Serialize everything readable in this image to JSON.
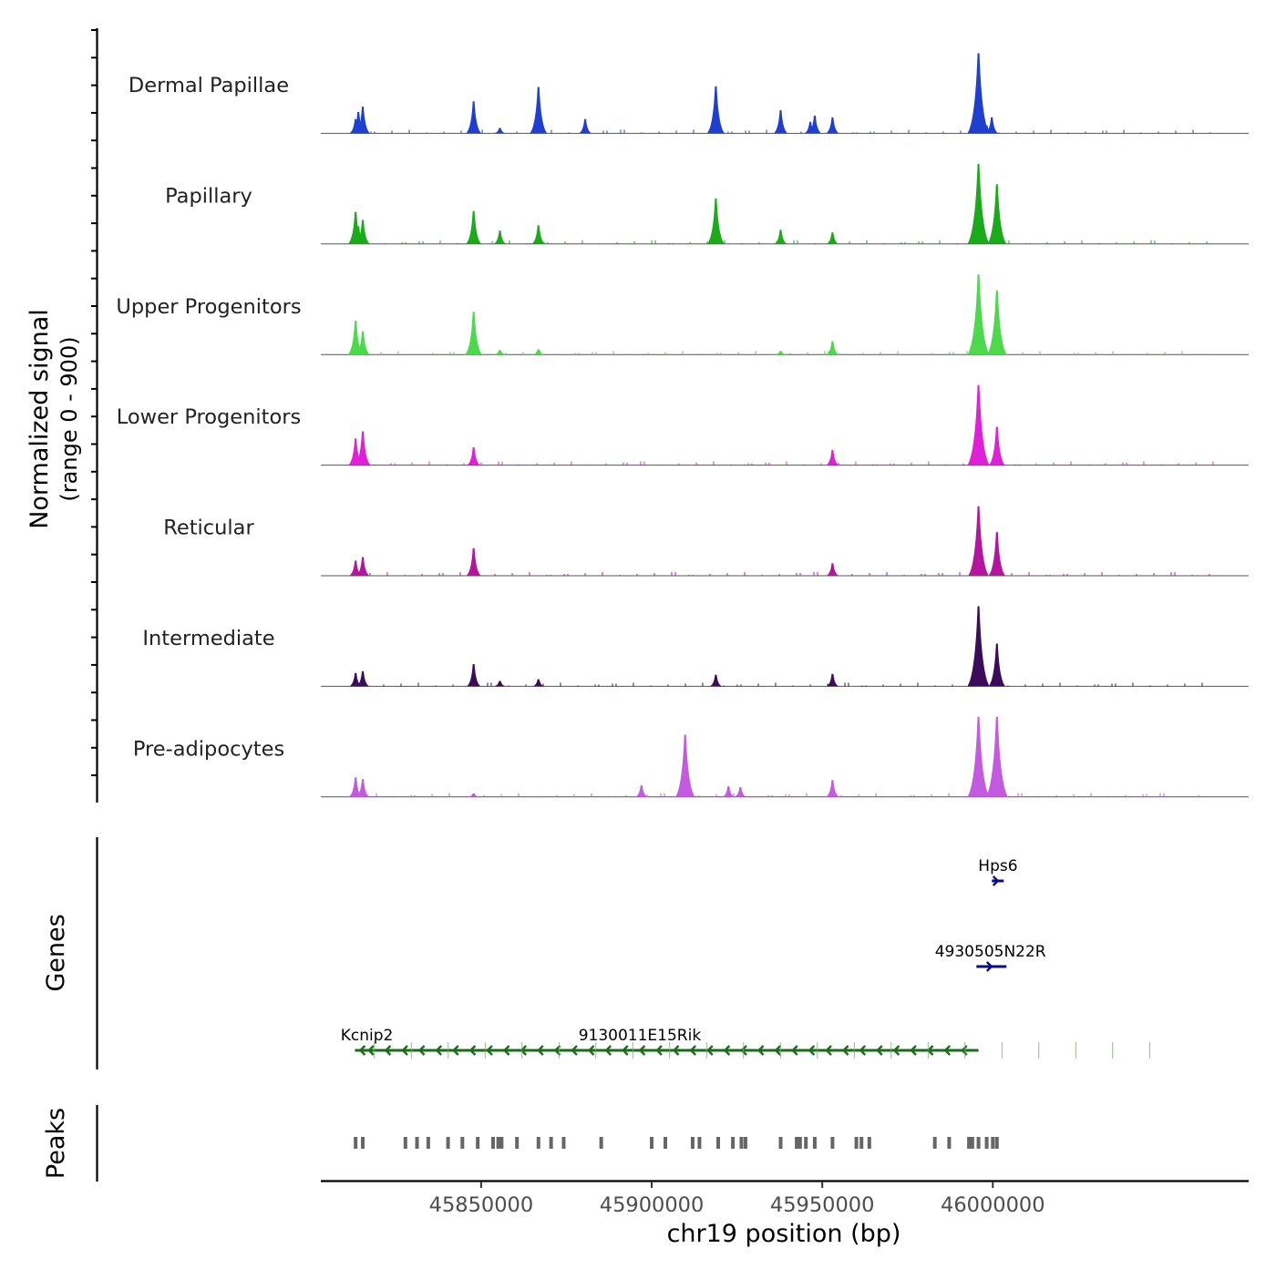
{
  "chart_data": {
    "type": "area",
    "title": "",
    "xlabel": "chr19 position (bp)",
    "ylabel": "Normalized signal",
    "ylabel_range": "(range 0 - 900)",
    "genes_label": "Genes",
    "peaks_label": "Peaks",
    "xlim": [
      45803000,
      46075000
    ],
    "ylim": [
      0,
      900
    ],
    "x_ticks": [
      45850000,
      45900000,
      45950000,
      46000000
    ],
    "x_tick_labels": [
      "45850000",
      "45900000",
      "45950000",
      "46000000"
    ],
    "tracks": [
      {
        "name": "Dermal Papillae",
        "color": "#1f3fd1",
        "peaks": [
          [
            45813200,
            160
          ],
          [
            45814000,
            240
          ],
          [
            45815300,
            300
          ],
          [
            45847800,
            360
          ],
          [
            45855500,
            60
          ],
          [
            45866800,
            520
          ],
          [
            45880500,
            160
          ],
          [
            45918800,
            530
          ],
          [
            45937800,
            260
          ],
          [
            45946500,
            130
          ],
          [
            45947800,
            200
          ],
          [
            45953000,
            180
          ],
          [
            45995800,
            900
          ],
          [
            45998200,
            90
          ],
          [
            45999700,
            180
          ]
        ]
      },
      {
        "name": "Papillary",
        "color": "#1aaa1a",
        "peaks": [
          [
            45813200,
            360
          ],
          [
            45814000,
            200
          ],
          [
            45815300,
            270
          ],
          [
            45847800,
            370
          ],
          [
            45855500,
            150
          ],
          [
            45866800,
            210
          ],
          [
            45918800,
            510
          ],
          [
            45937800,
            160
          ],
          [
            45953000,
            130
          ],
          [
            45995800,
            900
          ],
          [
            46001200,
            670
          ]
        ]
      },
      {
        "name": "Upper Progenitors",
        "color": "#4cd94c",
        "peaks": [
          [
            45813200,
            380
          ],
          [
            45815300,
            260
          ],
          [
            45847800,
            480
          ],
          [
            45855500,
            50
          ],
          [
            45866800,
            60
          ],
          [
            45937800,
            40
          ],
          [
            45953000,
            150
          ],
          [
            45995800,
            900
          ],
          [
            46001200,
            720
          ]
        ]
      },
      {
        "name": "Lower Progenitors",
        "color": "#e020d8",
        "peaks": [
          [
            45813200,
            300
          ],
          [
            45815300,
            380
          ],
          [
            45847800,
            200
          ],
          [
            45953000,
            170
          ],
          [
            45995800,
            900
          ],
          [
            46001200,
            430
          ]
        ]
      },
      {
        "name": "Reticular",
        "color": "#b5159e",
        "peaks": [
          [
            45813200,
            170
          ],
          [
            45815300,
            210
          ],
          [
            45847800,
            310
          ],
          [
            45953000,
            140
          ],
          [
            45995800,
            780
          ],
          [
            46001200,
            490
          ]
        ]
      },
      {
        "name": "Intermediate",
        "color": "#3c0c5a",
        "peaks": [
          [
            45813200,
            150
          ],
          [
            45815300,
            170
          ],
          [
            45847800,
            250
          ],
          [
            45855500,
            60
          ],
          [
            45866800,
            80
          ],
          [
            45918800,
            130
          ],
          [
            45953000,
            140
          ],
          [
            45995800,
            900
          ],
          [
            46001200,
            480
          ]
        ]
      },
      {
        "name": "Pre-adipocytes",
        "color": "#c45ae0",
        "peaks": [
          [
            45813200,
            220
          ],
          [
            45815300,
            200
          ],
          [
            45847800,
            40
          ],
          [
            45897000,
            130
          ],
          [
            45909800,
            700
          ],
          [
            45922500,
            120
          ],
          [
            45926000,
            110
          ],
          [
            45953000,
            190
          ],
          [
            45995800,
            900
          ],
          [
            46001200,
            900
          ]
        ]
      }
    ],
    "genes": [
      {
        "name": "Hps6",
        "start": 45999700,
        "end": 46003200,
        "strand": "+",
        "color": "#0a0a8c",
        "row": 0,
        "label_x": 46001500
      },
      {
        "name": "4930505N22Rik",
        "start": 45995200,
        "end": 46004000,
        "strand": "+",
        "color": "#0a0a8c",
        "row": 1,
        "label": "4930505N22R",
        "label_x": 45999300
      },
      {
        "name": "Kcnip2",
        "start": 45813000,
        "end": 45817200,
        "strand": "-",
        "color": "#1a6e1a",
        "row": 2,
        "label_x": 45816500
      },
      {
        "name": "9130011E15Rik",
        "start": 45815500,
        "end": 45995800,
        "strand": "-",
        "color": "#1a6e1a",
        "row": 2,
        "label_x": 45896500
      }
    ],
    "peak_regions": [
      45813200,
      45815300,
      45827800,
      45831200,
      45834500,
      45840300,
      45844500,
      45849000,
      45853500,
      45855000,
      45856000,
      45860500,
      45866800,
      45870500,
      45874200,
      45885200,
      45900000,
      45904000,
      45912000,
      45914000,
      45919500,
      45923800,
      45926300,
      45927500,
      45937800,
      45942500,
      45943500,
      45945200,
      45947800,
      45953000,
      45960000,
      45961500,
      45963800,
      45983000,
      45987200,
      45993000,
      45994000,
      45995800,
      45998200,
      46000000,
      46001200
    ]
  }
}
